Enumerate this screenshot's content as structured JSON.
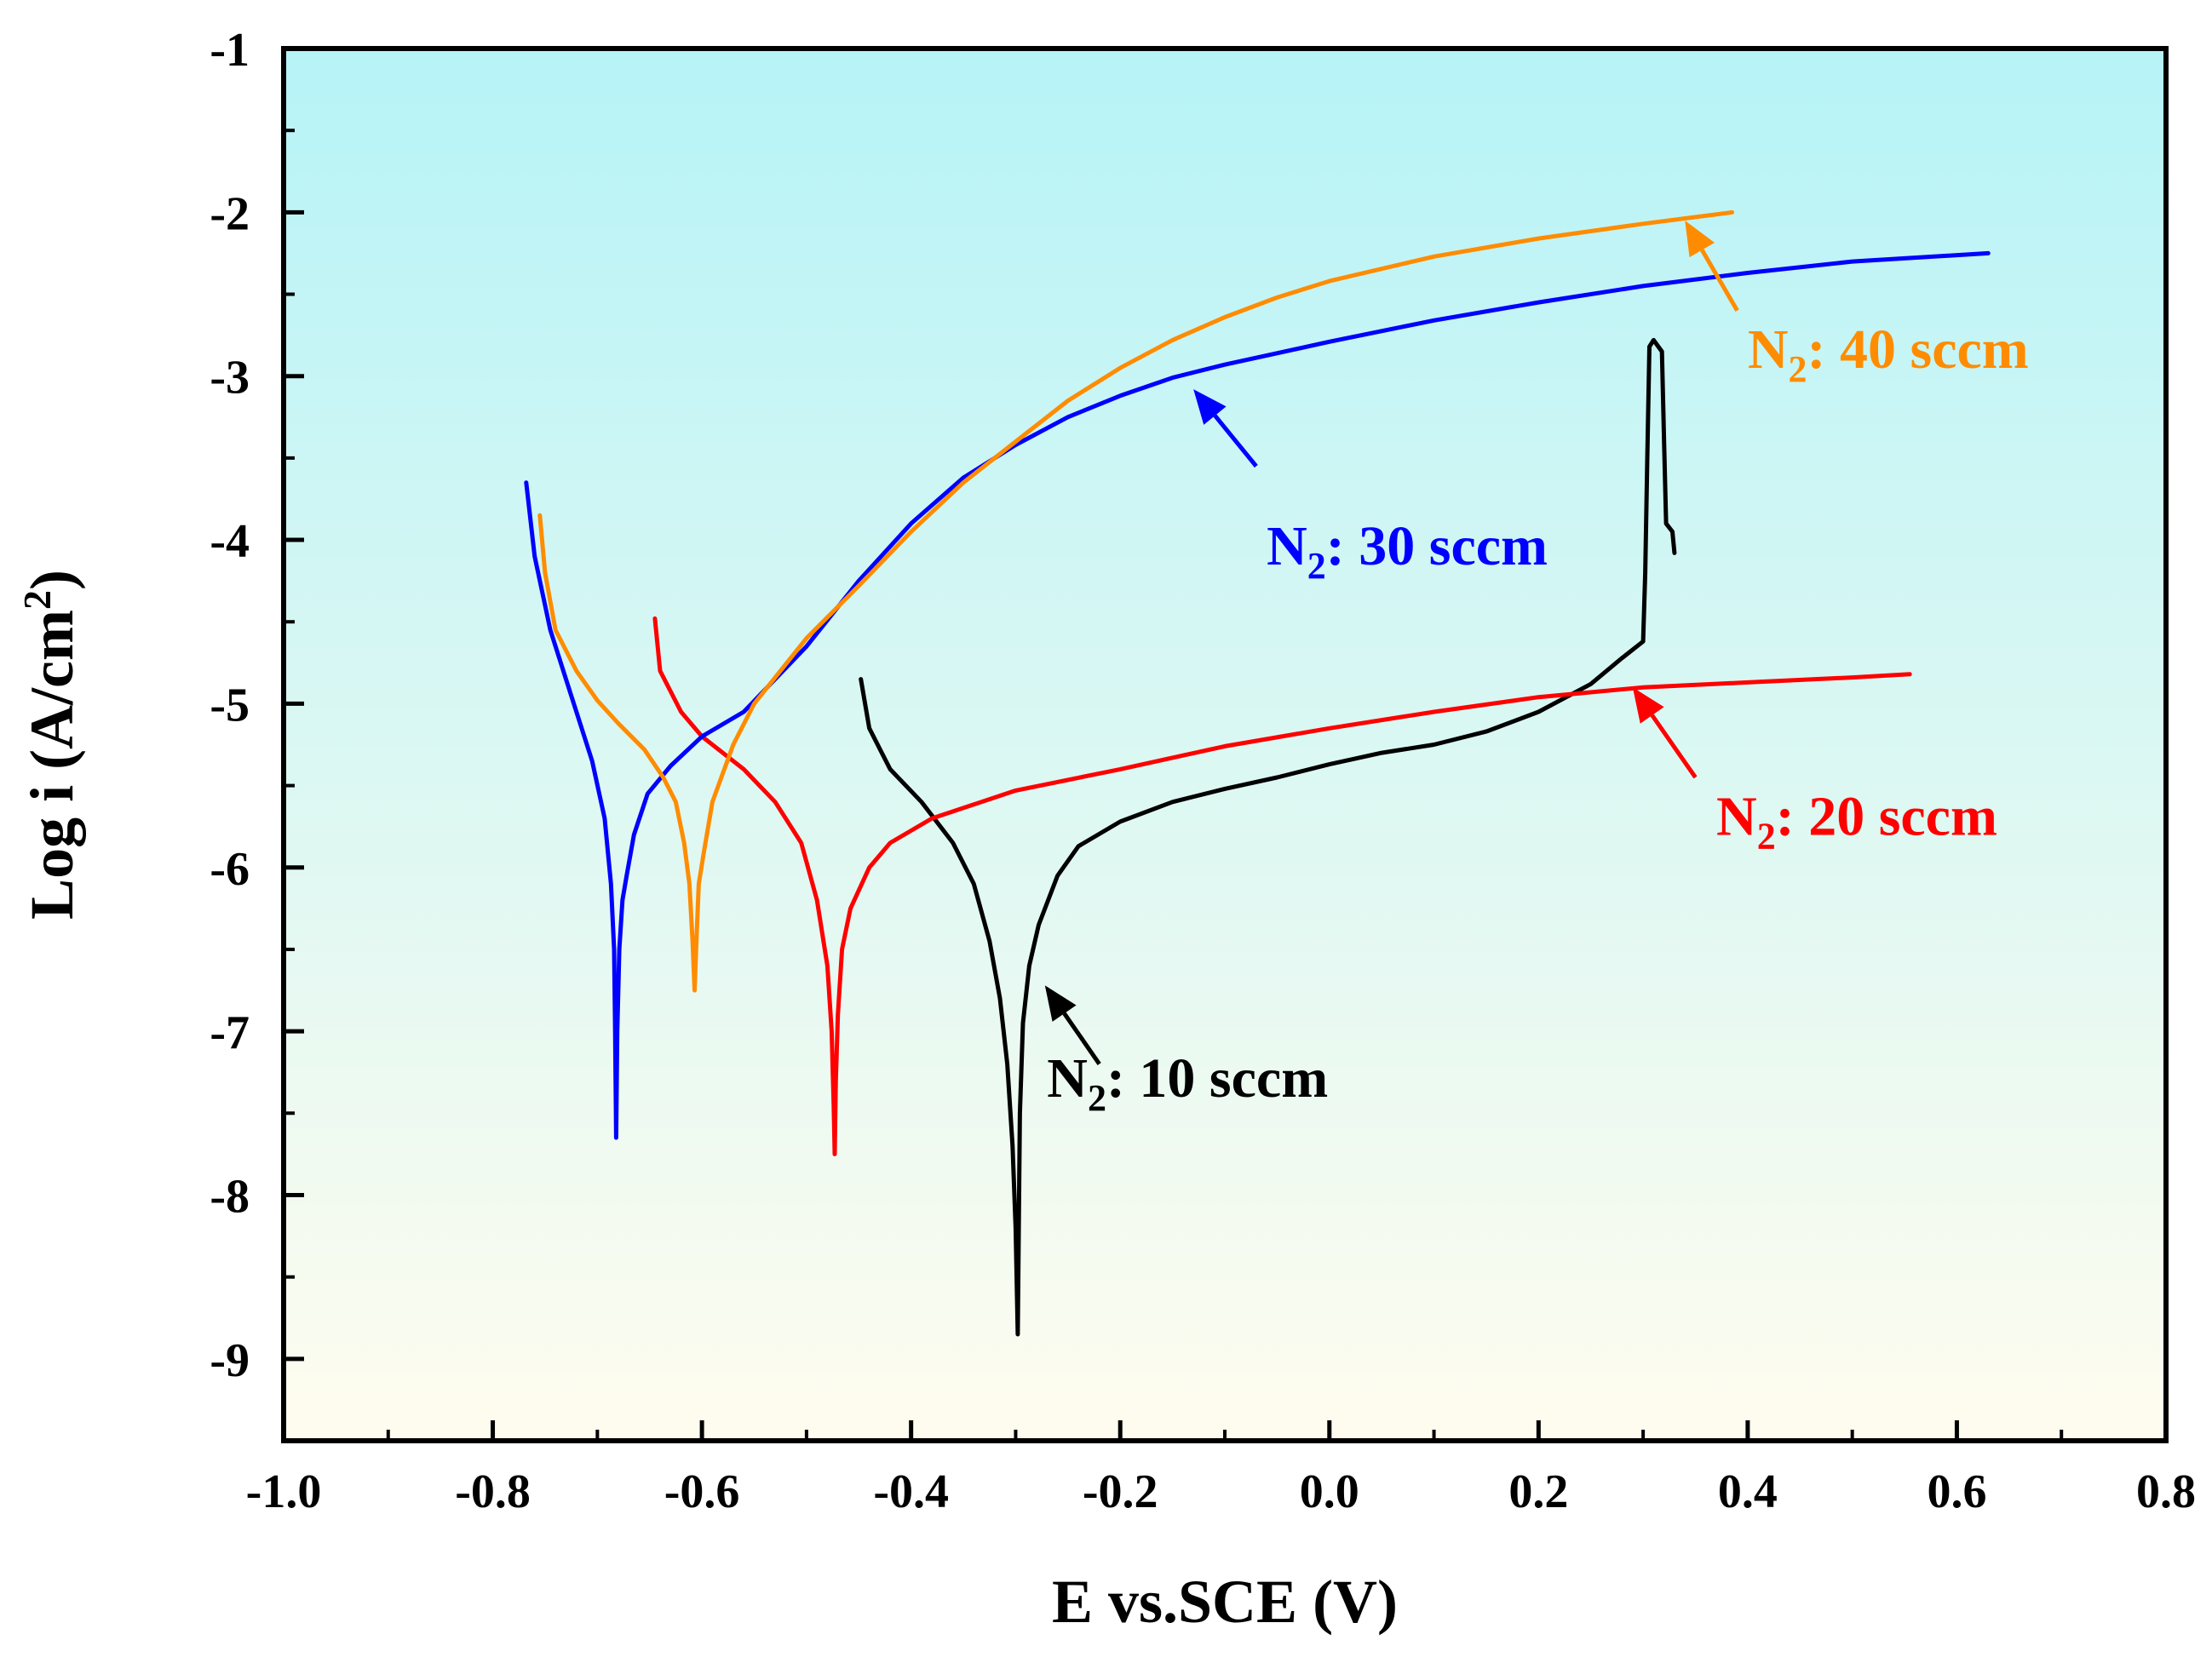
{
  "chart_data": {
    "type": "line",
    "xlabel": "E vs.SCE (V)",
    "ylabel": {
      "prefix": "Log i (A/cm",
      "sup": "2",
      "suffix": ")"
    },
    "xlim": [
      -1.0,
      0.8
    ],
    "ylim": [
      -9.5,
      -1
    ],
    "xticks": [
      "-1.0",
      "-0.8",
      "-0.6",
      "-0.4",
      "-0.2",
      "0.0",
      "0.2",
      "0.4",
      "0.6",
      "0.8"
    ],
    "yticks": [
      "-1",
      "-2",
      "-3",
      "-4",
      "-5",
      "-6",
      "-7",
      "-8",
      "-9"
    ],
    "grid": false,
    "legend": "none",
    "background_gradient": [
      "#b6f3f7",
      "#fffcef"
    ],
    "series": [
      {
        "name": "10 sccm",
        "color": "#000000",
        "points": [
          [
            -0.448,
            -4.85
          ],
          [
            -0.44,
            -5.15
          ],
          [
            -0.42,
            -5.4
          ],
          [
            -0.39,
            -5.6
          ],
          [
            -0.36,
            -5.85
          ],
          [
            -0.34,
            -6.1
          ],
          [
            -0.325,
            -6.45
          ],
          [
            -0.315,
            -6.8
          ],
          [
            -0.308,
            -7.2
          ],
          [
            -0.303,
            -7.7
          ],
          [
            -0.3,
            -8.2
          ],
          [
            -0.298,
            -8.85
          ],
          [
            -0.297,
            -8.2
          ],
          [
            -0.296,
            -7.5
          ],
          [
            -0.293,
            -6.95
          ],
          [
            -0.287,
            -6.6
          ],
          [
            -0.278,
            -6.35
          ],
          [
            -0.26,
            -6.05
          ],
          [
            -0.24,
            -5.87
          ],
          [
            -0.2,
            -5.72
          ],
          [
            -0.15,
            -5.6
          ],
          [
            -0.1,
            -5.52
          ],
          [
            -0.05,
            -5.45
          ],
          [
            0.0,
            -5.37
          ],
          [
            0.05,
            -5.3
          ],
          [
            0.1,
            -5.25
          ],
          [
            0.15,
            -5.17
          ],
          [
            0.2,
            -5.05
          ],
          [
            0.25,
            -4.88
          ],
          [
            0.28,
            -4.72
          ],
          [
            0.3,
            -4.62
          ],
          [
            0.302,
            -4.2
          ],
          [
            0.304,
            -3.5
          ],
          [
            0.306,
            -2.82
          ],
          [
            0.31,
            -2.78
          ],
          [
            0.318,
            -2.85
          ],
          [
            0.32,
            -3.4
          ],
          [
            0.322,
            -3.9
          ],
          [
            0.328,
            -3.95
          ],
          [
            0.33,
            -4.08
          ]
        ]
      },
      {
        "name": "20 sccm",
        "color": "#ff0000",
        "points": [
          [
            -0.645,
            -4.48
          ],
          [
            -0.64,
            -4.8
          ],
          [
            -0.62,
            -5.05
          ],
          [
            -0.6,
            -5.2
          ],
          [
            -0.56,
            -5.4
          ],
          [
            -0.53,
            -5.6
          ],
          [
            -0.505,
            -5.85
          ],
          [
            -0.49,
            -6.2
          ],
          [
            -0.48,
            -6.6
          ],
          [
            -0.476,
            -7.0
          ],
          [
            -0.474,
            -7.45
          ],
          [
            -0.473,
            -7.75
          ],
          [
            -0.472,
            -7.3
          ],
          [
            -0.47,
            -6.9
          ],
          [
            -0.466,
            -6.5
          ],
          [
            -0.458,
            -6.25
          ],
          [
            -0.44,
            -6.0
          ],
          [
            -0.42,
            -5.85
          ],
          [
            -0.38,
            -5.7
          ],
          [
            -0.3,
            -5.53
          ],
          [
            -0.2,
            -5.4
          ],
          [
            -0.1,
            -5.26
          ],
          [
            0.0,
            -5.15
          ],
          [
            0.1,
            -5.05
          ],
          [
            0.2,
            -4.96
          ],
          [
            0.3,
            -4.9
          ],
          [
            0.4,
            -4.87
          ],
          [
            0.5,
            -4.84
          ],
          [
            0.555,
            -4.82
          ]
        ]
      },
      {
        "name": "30 sccm",
        "color": "#0000ff",
        "points": [
          [
            -0.768,
            -3.65
          ],
          [
            -0.76,
            -4.1
          ],
          [
            -0.745,
            -4.55
          ],
          [
            -0.725,
            -4.95
          ],
          [
            -0.705,
            -5.35
          ],
          [
            -0.693,
            -5.7
          ],
          [
            -0.687,
            -6.1
          ],
          [
            -0.684,
            -6.5
          ],
          [
            -0.683,
            -7.0
          ],
          [
            -0.682,
            -7.65
          ],
          [
            -0.681,
            -7.0
          ],
          [
            -0.679,
            -6.5
          ],
          [
            -0.676,
            -6.2
          ],
          [
            -0.672,
            -6.05
          ],
          [
            -0.665,
            -5.8
          ],
          [
            -0.652,
            -5.55
          ],
          [
            -0.63,
            -5.38
          ],
          [
            -0.6,
            -5.2
          ],
          [
            -0.56,
            -5.05
          ],
          [
            -0.5,
            -4.65
          ],
          [
            -0.45,
            -4.25
          ],
          [
            -0.4,
            -3.9
          ],
          [
            -0.35,
            -3.62
          ],
          [
            -0.3,
            -3.42
          ],
          [
            -0.25,
            -3.25
          ],
          [
            -0.2,
            -3.12
          ],
          [
            -0.15,
            -3.01
          ],
          [
            -0.1,
            -2.93
          ],
          [
            -0.05,
            -2.86
          ],
          [
            0.0,
            -2.79
          ],
          [
            0.1,
            -2.66
          ],
          [
            0.2,
            -2.55
          ],
          [
            0.3,
            -2.45
          ],
          [
            0.4,
            -2.37
          ],
          [
            0.5,
            -2.3
          ],
          [
            0.63,
            -2.25
          ]
        ]
      },
      {
        "name": "40 sccm",
        "color": "#ff8c00",
        "points": [
          [
            -0.755,
            -3.85
          ],
          [
            -0.75,
            -4.2
          ],
          [
            -0.74,
            -4.55
          ],
          [
            -0.72,
            -4.8
          ],
          [
            -0.7,
            -4.98
          ],
          [
            -0.68,
            -5.12
          ],
          [
            -0.655,
            -5.28
          ],
          [
            -0.637,
            -5.45
          ],
          [
            -0.625,
            -5.6
          ],
          [
            -0.617,
            -5.85
          ],
          [
            -0.612,
            -6.1
          ],
          [
            -0.609,
            -6.45
          ],
          [
            -0.607,
            -6.75
          ],
          [
            -0.605,
            -6.4
          ],
          [
            -0.603,
            -6.1
          ],
          [
            -0.598,
            -5.9
          ],
          [
            -0.59,
            -5.6
          ],
          [
            -0.57,
            -5.25
          ],
          [
            -0.55,
            -5.0
          ],
          [
            -0.5,
            -4.6
          ],
          [
            -0.45,
            -4.28
          ],
          [
            -0.4,
            -3.95
          ],
          [
            -0.35,
            -3.65
          ],
          [
            -0.3,
            -3.4
          ],
          [
            -0.25,
            -3.15
          ],
          [
            -0.2,
            -2.95
          ],
          [
            -0.15,
            -2.78
          ],
          [
            -0.1,
            -2.64
          ],
          [
            -0.05,
            -2.52
          ],
          [
            0.0,
            -2.42
          ],
          [
            0.1,
            -2.27
          ],
          [
            0.2,
            -2.16
          ],
          [
            0.3,
            -2.07
          ],
          [
            0.385,
            -2.0
          ]
        ]
      }
    ],
    "annotations": [
      {
        "prefix": "N",
        "sub": "2",
        "text": ": 10 sccm",
        "color": "#000000",
        "label_at": [
          -0.27,
          -7.4
        ],
        "arrow_from": [
          -0.22,
          -7.2
        ],
        "arrow_to": [
          -0.272,
          -6.72
        ]
      },
      {
        "prefix": "N",
        "sub": "2",
        "text": ": 20 sccm",
        "color": "#ff0000",
        "label_at": [
          0.37,
          -5.8
        ],
        "arrow_from": [
          0.35,
          -5.45
        ],
        "arrow_to": [
          0.29,
          -4.9
        ]
      },
      {
        "prefix": "N",
        "sub": "2",
        "text": ": 30 sccm",
        "color": "#0000ff",
        "label_at": [
          -0.06,
          -4.15
        ],
        "arrow_from": [
          -0.07,
          -3.55
        ],
        "arrow_to": [
          -0.13,
          -3.08
        ]
      },
      {
        "prefix": "N",
        "sub": "2",
        "text": ": 40 sccm",
        "color": "#ff8c00",
        "label_at": [
          0.4,
          -2.95
        ],
        "arrow_from": [
          0.39,
          -2.6
        ],
        "arrow_to": [
          0.34,
          -2.05
        ]
      }
    ]
  }
}
